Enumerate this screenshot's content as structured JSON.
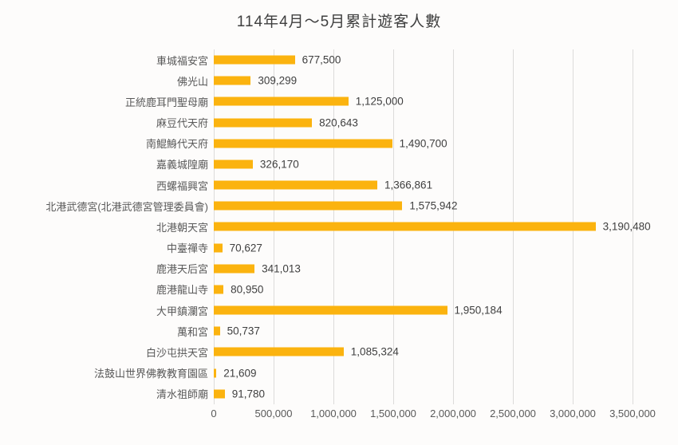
{
  "title": "114年4月～5月累計遊客人數",
  "colors": {
    "bar": "#FBB30F",
    "gridline": "#DCDBDA",
    "title_text": "#3F3F3F",
    "category_text": "#595959",
    "value_text": "#404040",
    "tick_text": "#595959",
    "background": "#FDFCFB"
  },
  "chart_data": {
    "type": "bar",
    "orientation": "horizontal",
    "title": "114年4月～5月累計遊客人數",
    "categories": [
      "車城福安宮",
      "佛光山",
      "正統鹿耳門聖母廟",
      "麻豆代天府",
      "南鯤鯓代天府",
      "嘉義城隍廟",
      "西螺福興宮",
      "北港武德宮(北港武德宮管理委員會)",
      "北港朝天宮",
      "中臺禪寺",
      "鹿港天后宮",
      "鹿港龍山寺",
      "大甲鎮瀾宮",
      "萬和宮",
      "白沙屯拱天宮",
      "法鼓山世界佛教教育園區",
      "清水祖師廟"
    ],
    "values": [
      677500,
      309299,
      1125000,
      820643,
      1490700,
      326170,
      1366861,
      1575942,
      3190480,
      70627,
      341013,
      80950,
      1950184,
      50737,
      1085324,
      21609,
      91780
    ],
    "value_labels": [
      "677,500",
      "309,299",
      "1,125,000",
      "820,643",
      "1,490,700",
      "326,170",
      "1,366,861",
      "1,575,942",
      "3,190,480",
      "70,627",
      "341,013",
      "80,950",
      "1,950,184",
      "50,737",
      "1,085,324",
      "21,609",
      "91,780"
    ],
    "x_ticks": [
      {
        "value": 0,
        "label": "0"
      },
      {
        "value": 500000,
        "label": "500,000"
      },
      {
        "value": 1000000,
        "label": "1,000,000"
      },
      {
        "value": 1500000,
        "label": "1,500,000"
      },
      {
        "value": 2000000,
        "label": "2,000,000"
      },
      {
        "value": 2500000,
        "label": "2,500,000"
      },
      {
        "value": 3000000,
        "label": "3,000,000"
      },
      {
        "value": 3500000,
        "label": "3,500,000"
      }
    ],
    "xlim": [
      0,
      3500000
    ],
    "grid": true,
    "legend": false,
    "data_labels": true
  }
}
